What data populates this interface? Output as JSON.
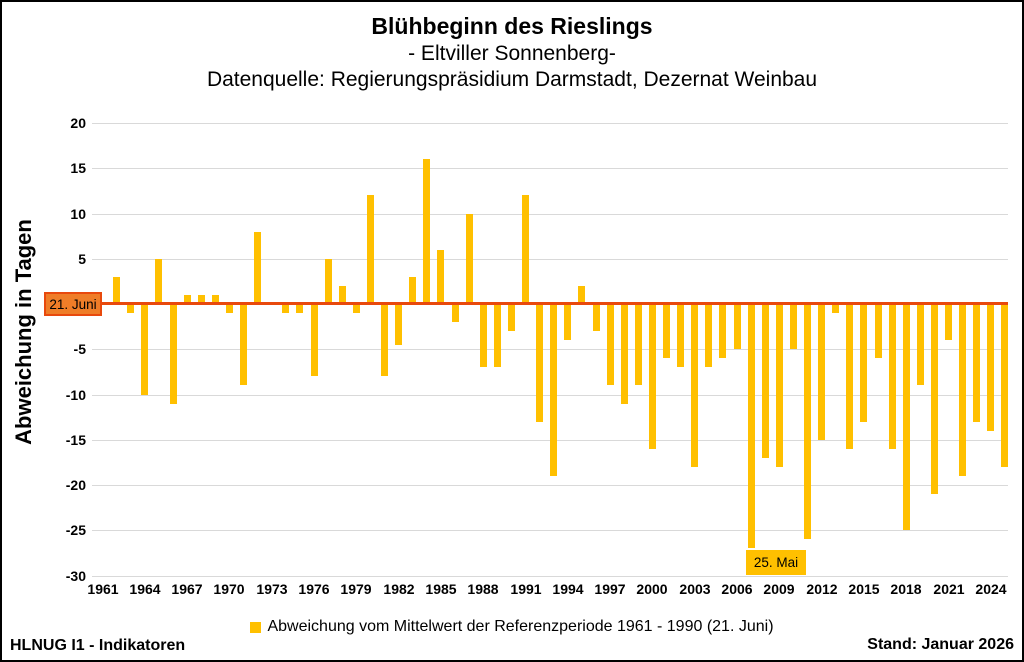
{
  "title": {
    "line1": "Blühbeginn des Rieslings",
    "line2": "- Eltviller Sonnenberg-",
    "line3": "Datenquelle: Regierungspräsidium Darmstadt, Dezernat Weinbau"
  },
  "y_axis": {
    "title": "Abweichung in Tagen",
    "tick_labels": [
      20,
      15,
      10,
      5,
      -5,
      -10,
      -15,
      -20,
      -25,
      -30
    ],
    "grid_values": [
      20,
      15,
      10,
      5,
      0,
      -5,
      -10,
      -15,
      -20,
      -25,
      -30
    ]
  },
  "annotations": {
    "mean_line_label": "21. Juni",
    "min_value_label": "25. Mai"
  },
  "legend": {
    "label": "Abweichung vom Mittelwert der Referenzperiode 1961 - 1990 (21. Juni)"
  },
  "footer": {
    "left": "HLNUG I1 - Indikatoren",
    "right": "Stand: Januar 2026"
  },
  "colors": {
    "bar": "#FFC000",
    "zero_line": "#E8490D",
    "mean_box_fill": "#EF7D28",
    "mean_box_border": "#E8490D",
    "min_box_fill": "#FFC000",
    "gridline": "#D9D9D9",
    "text": "#000000"
  },
  "chart_data": {
    "type": "bar",
    "title": "Blühbeginn des Rieslings - Eltviller Sonnenberg",
    "xlabel": "",
    "ylabel": "Abweichung in Tagen",
    "ylim": [
      -30,
      20
    ],
    "grid": true,
    "legend_position": "bottom",
    "baseline_value": 0,
    "baseline_meaning": "21. Juni",
    "min_annotation": {
      "year": 2007,
      "value": -27,
      "label": "25. Mai"
    },
    "x_ticks": [
      1961,
      1964,
      1967,
      1970,
      1973,
      1976,
      1979,
      1982,
      1985,
      1988,
      1991,
      1994,
      1997,
      2000,
      2003,
      2006,
      2009,
      2012,
      2015,
      2018,
      2021,
      2024
    ],
    "years": [
      1961,
      1962,
      1963,
      1964,
      1965,
      1966,
      1967,
      1968,
      1969,
      1970,
      1971,
      1972,
      1973,
      1974,
      1975,
      1976,
      1977,
      1978,
      1979,
      1980,
      1981,
      1982,
      1983,
      1984,
      1985,
      1986,
      1987,
      1988,
      1989,
      1990,
      1991,
      1992,
      1993,
      1994,
      1995,
      1996,
      1997,
      1998,
      1999,
      2000,
      2001,
      2002,
      2003,
      2004,
      2005,
      2006,
      2007,
      2008,
      2009,
      2010,
      2011,
      2012,
      2013,
      2014,
      2015,
      2016,
      2017,
      2018,
      2019,
      2020,
      2021,
      2022,
      2023,
      2024,
      2025
    ],
    "values": [
      0,
      3,
      -1,
      -10,
      5,
      -11,
      1,
      1,
      1,
      -1,
      -9,
      8,
      0,
      -1,
      -1,
      -8,
      5,
      2,
      -1,
      12,
      -8,
      -4.5,
      3,
      16,
      6,
      -2,
      10,
      -7,
      -7,
      -3,
      12,
      -13,
      -19,
      -4,
      2,
      -3,
      -9,
      -11,
      -9,
      -16,
      -6,
      -7,
      -18,
      -7,
      -6,
      -5,
      -27,
      -17,
      -18,
      -5,
      -26,
      -15,
      -1,
      -16,
      -13,
      -6,
      -16,
      -25,
      -9,
      -21,
      -4,
      -19,
      -13,
      -14,
      -18
    ]
  }
}
